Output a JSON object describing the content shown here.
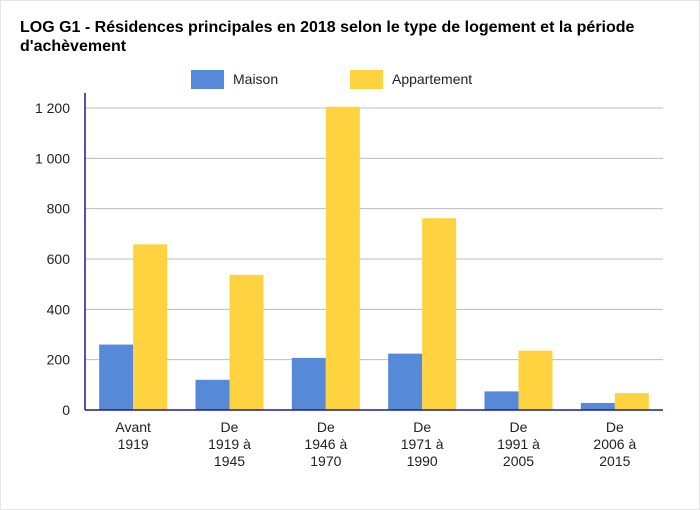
{
  "chart_data": {
    "type": "bar",
    "title": "LOG G1 - Résidences principales en 2018 selon le type de logement et la période d'achèvement",
    "categories": [
      [
        "Avant",
        "1919"
      ],
      [
        "De",
        "1919 à",
        "1945"
      ],
      [
        "De",
        "1946 à",
        "1970"
      ],
      [
        "De",
        "1971 à",
        "1990"
      ],
      [
        "De",
        "1991 à",
        "2005"
      ],
      [
        "De",
        "2006 à",
        "2015"
      ]
    ],
    "series": [
      {
        "name": "Maison",
        "color": "#5689d8",
        "values": [
          260,
          120,
          207,
          224,
          74,
          28
        ]
      },
      {
        "name": "Appartement",
        "color": "#ffd23f",
        "values": [
          658,
          537,
          1205,
          762,
          236,
          67
        ]
      }
    ],
    "ylim": [
      0,
      1200
    ],
    "yticks": [
      0,
      200,
      400,
      600,
      800,
      1000,
      1200
    ],
    "ytick_labels": [
      "0",
      "200",
      "400",
      "600",
      "800",
      "1 000",
      "1 200"
    ],
    "xlabel": "",
    "ylabel": "",
    "grid": true,
    "legend_position": "top"
  }
}
